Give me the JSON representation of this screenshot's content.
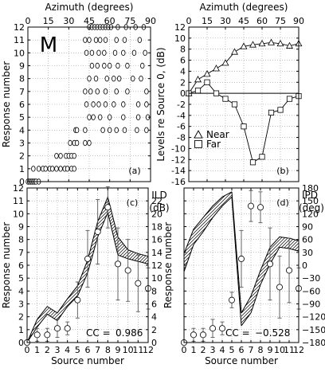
{
  "figure": {
    "panel_letter": "M",
    "cc_label": "CC ="
  },
  "chart_data": [
    {
      "id": "a",
      "type": "scatter",
      "panel_label": "(a)",
      "xlabel_top": "Azimuth (degrees)",
      "ylabel": "Response number",
      "xlim": [
        0,
        90
      ],
      "ylim": [
        0,
        12
      ],
      "xticks": [
        0,
        15,
        30,
        45,
        60,
        75,
        90
      ],
      "yticks": [
        0,
        1,
        2,
        3,
        4,
        5,
        6,
        7,
        8,
        9,
        10,
        11,
        12
      ],
      "grid": true,
      "points": [
        [
          0,
          0
        ],
        [
          1,
          0
        ],
        [
          2,
          0
        ],
        [
          3,
          0
        ],
        [
          4,
          0
        ],
        [
          5,
          0
        ],
        [
          6,
          0
        ],
        [
          8,
          0
        ],
        [
          4,
          1
        ],
        [
          8,
          1
        ],
        [
          11,
          1
        ],
        [
          13,
          1
        ],
        [
          16,
          1
        ],
        [
          18,
          1
        ],
        [
          21,
          1
        ],
        [
          24,
          1
        ],
        [
          27,
          1
        ],
        [
          29,
          1
        ],
        [
          32,
          1
        ],
        [
          34,
          1
        ],
        [
          21,
          2
        ],
        [
          24,
          2
        ],
        [
          28,
          2
        ],
        [
          30,
          2
        ],
        [
          32,
          2
        ],
        [
          34,
          2
        ],
        [
          31,
          3
        ],
        [
          34,
          3
        ],
        [
          36,
          3
        ],
        [
          42,
          3
        ],
        [
          45,
          3
        ],
        [
          35,
          4
        ],
        [
          36,
          4
        ],
        [
          42,
          4
        ],
        [
          55,
          4
        ],
        [
          60,
          4
        ],
        [
          65,
          4
        ],
        [
          71,
          4
        ],
        [
          80,
          4
        ],
        [
          87,
          4
        ],
        [
          45,
          5
        ],
        [
          48,
          5
        ],
        [
          53,
          5
        ],
        [
          60,
          5
        ],
        [
          70,
          5
        ],
        [
          81,
          5
        ],
        [
          88,
          5
        ],
        [
          43,
          6
        ],
        [
          48,
          6
        ],
        [
          52,
          6
        ],
        [
          57,
          6
        ],
        [
          63,
          6
        ],
        [
          70,
          6
        ],
        [
          81,
          6
        ],
        [
          87,
          6
        ],
        [
          42,
          7
        ],
        [
          46,
          7
        ],
        [
          51,
          7
        ],
        [
          57,
          7
        ],
        [
          65,
          7
        ],
        [
          73,
          7
        ],
        [
          87,
          7
        ],
        [
          45,
          8
        ],
        [
          50,
          8
        ],
        [
          58,
          8
        ],
        [
          63,
          8
        ],
        [
          67,
          8
        ],
        [
          77,
          8
        ],
        [
          83,
          8
        ],
        [
          47,
          9
        ],
        [
          51,
          9
        ],
        [
          56,
          9
        ],
        [
          60,
          9
        ],
        [
          66,
          9
        ],
        [
          73,
          9
        ],
        [
          84,
          9
        ],
        [
          43,
          10
        ],
        [
          47,
          10
        ],
        [
          52,
          10
        ],
        [
          56,
          10
        ],
        [
          64,
          10
        ],
        [
          70,
          10
        ],
        [
          78,
          10
        ],
        [
          86,
          10
        ],
        [
          42,
          11
        ],
        [
          45,
          11
        ],
        [
          50,
          11
        ],
        [
          53,
          11
        ],
        [
          57,
          11
        ],
        [
          65,
          11
        ],
        [
          71,
          11
        ],
        [
          82,
          11
        ],
        [
          45,
          12
        ],
        [
          47,
          12
        ],
        [
          49,
          12
        ],
        [
          51,
          12
        ],
        [
          53,
          12
        ],
        [
          55,
          12
        ],
        [
          57,
          12
        ],
        [
          59,
          12
        ],
        [
          61,
          12
        ],
        [
          66,
          12
        ],
        [
          72,
          12
        ],
        [
          79,
          12
        ],
        [
          85,
          12
        ]
      ]
    },
    {
      "id": "b",
      "type": "line",
      "panel_label": "(b)",
      "xlabel_top": "Azimuth (degrees)",
      "ylabel": "Levels re Source 0, (dB)",
      "xlim": [
        0,
        90
      ],
      "ylim": [
        -16,
        12
      ],
      "xticks": [
        0,
        15,
        30,
        45,
        60,
        75,
        90
      ],
      "yticks": [
        -16,
        -14,
        -12,
        -10,
        -8,
        -6,
        -4,
        -2,
        0,
        2,
        4,
        6,
        8,
        10,
        12
      ],
      "grid": true,
      "legend_position": "lower-left",
      "series": [
        {
          "name": "Near",
          "marker": "triangle",
          "x": [
            0,
            7.5,
            15,
            22.5,
            30,
            37.5,
            45,
            52.5,
            60,
            67.5,
            75,
            82.5,
            90
          ],
          "y": [
            0,
            2.5,
            3.5,
            4.5,
            5.5,
            7.5,
            8.5,
            8.8,
            9,
            9.2,
            9,
            8.6,
            9
          ]
        },
        {
          "name": "Far",
          "marker": "square",
          "x": [
            0,
            7.5,
            15,
            22.5,
            30,
            37.5,
            45,
            52.5,
            60,
            67.5,
            75,
            82.5,
            90
          ],
          "y": [
            0,
            0.5,
            2,
            0,
            -1,
            -2,
            -6,
            -12.5,
            -11.5,
            -3.5,
            -3,
            -1,
            -0.5
          ]
        }
      ]
    },
    {
      "id": "c",
      "type": "line",
      "panel_label": "(c)",
      "xlabel": "Source number",
      "ylabel": "Response number",
      "ylabel_right": "ILD",
      "unit_right": "(dB)",
      "xlim": [
        0,
        12
      ],
      "ylim": [
        0,
        12
      ],
      "xticks": [
        0,
        1,
        2,
        3,
        4,
        5,
        6,
        7,
        8,
        9,
        10,
        11,
        12
      ],
      "yticks": [
        0,
        1,
        2,
        3,
        4,
        5,
        6,
        7,
        8,
        9,
        10,
        11,
        12
      ],
      "right_ticks": [
        0,
        2,
        4,
        6,
        8,
        10,
        12,
        14,
        16,
        18,
        20,
        22
      ],
      "right_lim": [
        0,
        24
      ],
      "grid": true,
      "cc": "0.986",
      "mean_response": {
        "x": [
          0,
          1,
          2,
          3,
          4,
          5,
          6,
          7,
          8,
          9,
          10,
          11,
          12
        ],
        "y": [
          0,
          0.6,
          0.6,
          1.1,
          1.1,
          3.3,
          6.5,
          8.6,
          10.5,
          6.1,
          5.6,
          4.6,
          4.2
        ],
        "err": [
          0,
          0.5,
          0.5,
          0.7,
          0.5,
          1.4,
          2.2,
          2.5,
          1.6,
          2.8,
          2.4,
          2.2,
          1.6
        ]
      },
      "ild_band": {
        "x": [
          0,
          1,
          2,
          3,
          4,
          5,
          6,
          7,
          8,
          9,
          10,
          11,
          12
        ],
        "lower": [
          0,
          1.2,
          2.2,
          1.7,
          2.8,
          3.6,
          5.4,
          8.2,
          10.1,
          6.8,
          6.5,
          6.3,
          6.1
        ],
        "upper": [
          0,
          1.8,
          2.8,
          2.3,
          3.4,
          4.4,
          6.4,
          9.4,
          11.3,
          8.2,
          7.2,
          6.9,
          6.7
        ]
      }
    },
    {
      "id": "d",
      "type": "line",
      "panel_label": "(d)",
      "xlabel": "Source number",
      "ylabel": "Response number",
      "ylabel_right": "IPD",
      "unit_right": "(deg)",
      "xlim": [
        0,
        12
      ],
      "ylim": [
        0,
        12
      ],
      "xticks": [
        0,
        1,
        2,
        3,
        4,
        5,
        6,
        7,
        8,
        9,
        10,
        11,
        12
      ],
      "yticks": [
        0,
        1,
        2,
        3,
        4,
        5,
        6,
        7,
        8,
        9,
        10,
        11,
        12
      ],
      "right_ticks": [
        -180,
        -150,
        -120,
        -90,
        -60,
        -30,
        0,
        30,
        60,
        90,
        120,
        150,
        180
      ],
      "right_lim": [
        -180,
        180
      ],
      "grid": true,
      "cc": "−0.528",
      "mean_response": {
        "x": [
          0,
          1,
          2,
          3,
          4,
          5,
          6,
          7,
          8,
          9,
          10,
          11,
          12
        ],
        "y": [
          0,
          0.6,
          0.6,
          1.1,
          1.1,
          3.3,
          6.5,
          10.6,
          10.5,
          6.1,
          4.3,
          5.6,
          4.2
        ],
        "err": [
          0,
          0.5,
          0.5,
          0.7,
          0.5,
          0.6,
          2.2,
          1.2,
          1.2,
          2.8,
          2.4,
          2.5,
          1.6
        ]
      },
      "ipd_band": {
        "x": [
          0,
          1,
          2,
          3,
          4,
          5,
          6,
          7,
          8,
          9,
          10,
          11,
          12
        ],
        "lower": [
          5.5,
          7.6,
          8.6,
          9.7,
          10.6,
          11.3,
          1.3,
          2.3,
          4.5,
          6.1,
          7.4,
          7.3,
          7.1
        ],
        "upper": [
          6.9,
          8.8,
          9.7,
          10.6,
          11.3,
          11.7,
          2.3,
          3.6,
          5.6,
          7.4,
          8.2,
          8.1,
          7.9
        ]
      }
    }
  ]
}
